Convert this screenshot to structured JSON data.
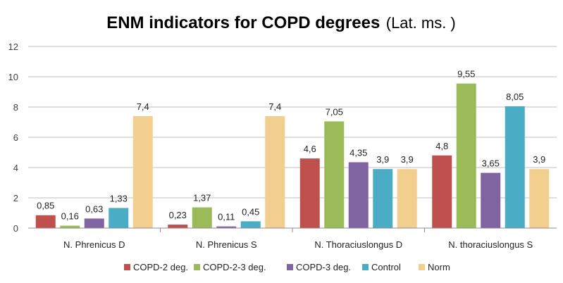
{
  "chart_data": {
    "type": "bar",
    "title": "ENM indicators for COPD degrees",
    "title_suffix": "(Lat. ms. )",
    "categories": [
      "N. Phrenicus D",
      "N. Phrenicus S",
      "N. Thoraciuslongus D",
      "N. thoraciuslongus S"
    ],
    "series": [
      {
        "name": "COPD-2 deg.",
        "color": "#c0504d",
        "values": [
          0.85,
          0.23,
          4.6,
          4.8
        ],
        "labels": [
          "0,85",
          "0,23",
          "4,6",
          "4,8"
        ]
      },
      {
        "name": "COPD-2-3 deg.",
        "color": "#9bbb59",
        "values": [
          0.16,
          1.37,
          7.05,
          9.55
        ],
        "labels": [
          "0,16",
          "1,37",
          "7,05",
          "9,55"
        ]
      },
      {
        "name": "COPD-3 deg.",
        "color": "#8064a2",
        "values": [
          0.63,
          0.11,
          4.35,
          3.65
        ],
        "labels": [
          "0,63",
          "0,11",
          "4,35",
          "3,65"
        ]
      },
      {
        "name": "Control",
        "color": "#4bacc6",
        "values": [
          1.33,
          0.45,
          3.9,
          8.05
        ],
        "labels": [
          "1,33",
          "0,45",
          "3,9",
          "8,05"
        ]
      },
      {
        "name": "Norm",
        "color": "#f2cf8e",
        "values": [
          7.4,
          7.4,
          3.9,
          3.9
        ],
        "labels": [
          "7,4",
          "7,4",
          "3,9",
          "3,9"
        ]
      }
    ],
    "yticks": [
      "0",
      "2",
      "4",
      "6",
      "8",
      "10",
      "12"
    ],
    "ylim": [
      0,
      12
    ],
    "grid": true,
    "legend_position": "bottom"
  }
}
